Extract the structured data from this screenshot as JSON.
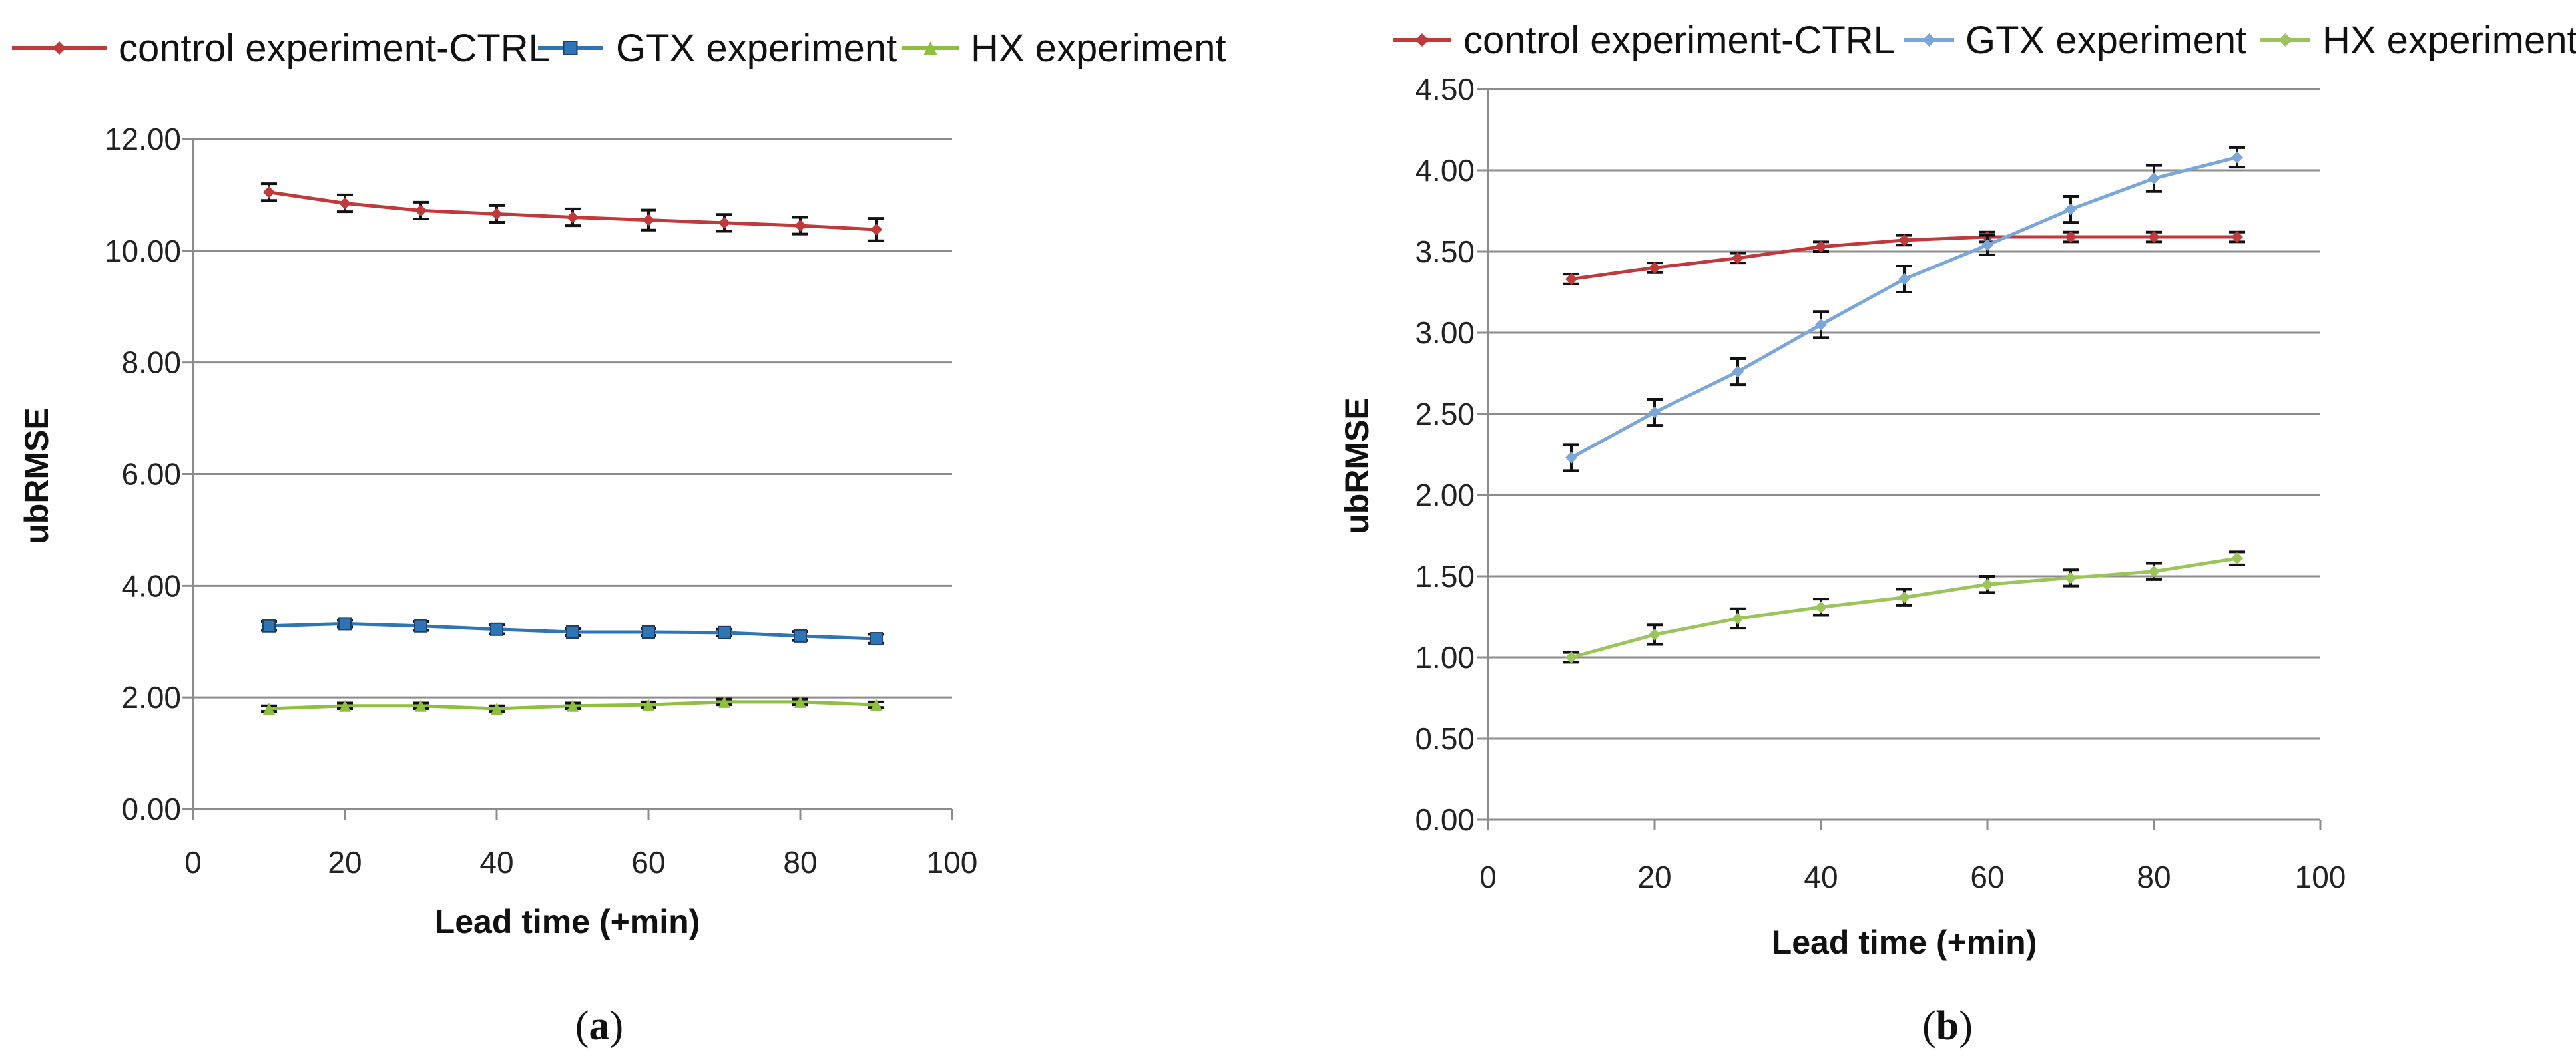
{
  "chart_data": [
    {
      "type": "line",
      "panel_caption": {
        "open": "(",
        "letter": "a",
        "close": ")"
      },
      "xlabel": "Lead time (+min)",
      "ylabel": "ubRMSE",
      "xlim": [
        0,
        100
      ],
      "ylim": [
        0,
        12
      ],
      "x_ticks": [
        "0",
        "20",
        "40",
        "60",
        "80",
        "100"
      ],
      "y_ticks": [
        "0.00",
        "2.00",
        "4.00",
        "6.00",
        "8.00",
        "10.00",
        "12.00"
      ],
      "x": [
        10,
        20,
        30,
        40,
        50,
        60,
        70,
        80,
        90
      ],
      "series": [
        {
          "name": "control experiment-CTRL",
          "color": "#c0393b",
          "marker": "diamond",
          "values": [
            11.05,
            10.85,
            10.72,
            10.66,
            10.6,
            10.55,
            10.5,
            10.45,
            10.38
          ],
          "errors": [
            0.15,
            0.15,
            0.15,
            0.15,
            0.15,
            0.18,
            0.15,
            0.15,
            0.2
          ]
        },
        {
          "name": "GTX experiment",
          "color": "#2e75b6",
          "marker": "square",
          "values": [
            3.28,
            3.32,
            3.28,
            3.22,
            3.17,
            3.17,
            3.16,
            3.1,
            3.05
          ],
          "errors": [
            0.08,
            0.06,
            0.08,
            0.08,
            0.06,
            0.06,
            0.06,
            0.08,
            0.08
          ]
        },
        {
          "name": "HX experiment",
          "color": "#8fbf3f",
          "marker": "triangle",
          "values": [
            1.8,
            1.85,
            1.85,
            1.8,
            1.85,
            1.87,
            1.92,
            1.92,
            1.87
          ],
          "errors": [
            0.05,
            0.05,
            0.05,
            0.05,
            0.05,
            0.05,
            0.05,
            0.05,
            0.05
          ]
        }
      ]
    },
    {
      "type": "line",
      "panel_caption": {
        "open": "(",
        "letter": "b",
        "close": ")"
      },
      "xlabel": "Lead time (+min)",
      "ylabel": "ubRMSE",
      "xlim": [
        0,
        100
      ],
      "ylim": [
        0,
        4.5
      ],
      "x_ticks": [
        "0",
        "20",
        "40",
        "60",
        "80",
        "100"
      ],
      "y_ticks": [
        "0.00",
        "0.50",
        "1.00",
        "1.50",
        "2.00",
        "2.50",
        "3.00",
        "3.50",
        "4.00",
        "4.50"
      ],
      "x": [
        10,
        20,
        30,
        40,
        50,
        60,
        70,
        80,
        90
      ],
      "series": [
        {
          "name": "control experiment-CTRL",
          "color": "#c0393b",
          "marker": "diamond",
          "values": [
            3.33,
            3.4,
            3.46,
            3.53,
            3.57,
            3.59,
            3.59,
            3.59,
            3.59
          ],
          "errors": [
            0.03,
            0.03,
            0.03,
            0.03,
            0.03,
            0.03,
            0.03,
            0.03,
            0.03
          ]
        },
        {
          "name": "GTX experiment",
          "color": "#7aa6d8",
          "marker": "diamond",
          "values": [
            2.23,
            2.51,
            2.76,
            3.05,
            3.33,
            3.54,
            3.76,
            3.95,
            4.08
          ],
          "errors": [
            0.08,
            0.08,
            0.08,
            0.08,
            0.08,
            0.06,
            0.08,
            0.08,
            0.06
          ]
        },
        {
          "name": "HX experiment",
          "color": "#9bc45a",
          "marker": "diamond",
          "values": [
            1.0,
            1.14,
            1.24,
            1.31,
            1.37,
            1.45,
            1.49,
            1.53,
            1.61
          ],
          "errors": [
            0.03,
            0.06,
            0.06,
            0.05,
            0.05,
            0.05,
            0.05,
            0.05,
            0.04
          ]
        }
      ]
    }
  ]
}
